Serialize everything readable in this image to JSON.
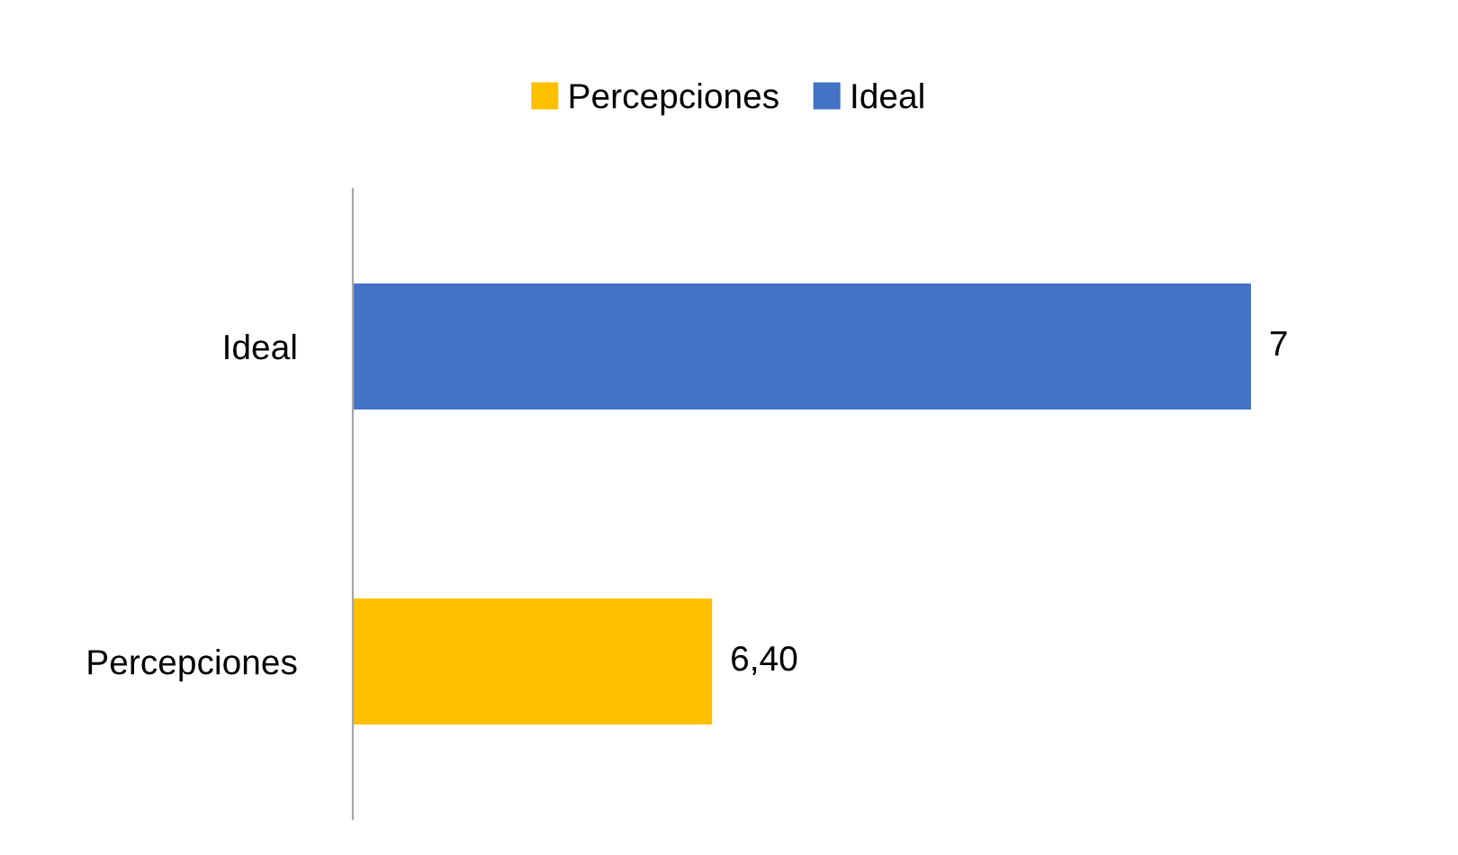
{
  "chart_data": {
    "type": "bar",
    "orientation": "horizontal",
    "categories": [
      "Ideal",
      "Percepciones"
    ],
    "series": [
      {
        "name": "Percepciones",
        "color": "#ffc000",
        "values": [
          null,
          6.4
        ],
        "value_labels": [
          null,
          "6,40"
        ]
      },
      {
        "name": "Ideal",
        "color": "#4472c4",
        "values": [
          7,
          null
        ],
        "value_labels": [
          "7",
          null
        ]
      }
    ],
    "xlim": [
      6,
      7
    ],
    "tick_labels": "y",
    "grid": false,
    "legend": "top"
  }
}
